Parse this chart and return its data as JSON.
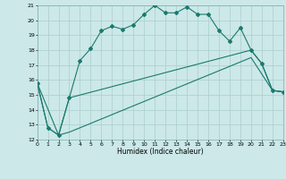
{
  "title": "",
  "xlabel": "Humidex (Indice chaleur)",
  "xlim": [
    0,
    23
  ],
  "ylim": [
    12,
    21
  ],
  "yticks": [
    12,
    13,
    14,
    15,
    16,
    17,
    18,
    19,
    20,
    21
  ],
  "xticks": [
    0,
    1,
    2,
    3,
    4,
    5,
    6,
    7,
    8,
    9,
    10,
    11,
    12,
    13,
    14,
    15,
    16,
    17,
    18,
    19,
    20,
    21,
    22,
    23
  ],
  "bg_color": "#cce8e8",
  "grid_color": "#aacece",
  "line_color": "#1a7a6e",
  "line1_x": [
    0,
    1,
    2,
    3,
    4,
    5,
    6,
    7,
    8,
    9,
    10,
    11,
    12,
    13,
    14,
    15,
    16,
    17,
    18,
    19,
    20,
    21,
    22,
    23
  ],
  "line1_y": [
    15.8,
    12.8,
    12.3,
    14.8,
    17.3,
    18.1,
    19.3,
    19.6,
    19.4,
    19.7,
    20.4,
    21.0,
    20.5,
    20.5,
    20.9,
    20.4,
    20.4,
    19.3,
    18.6,
    19.5,
    18.0,
    17.1,
    15.3,
    15.2
  ],
  "line2_x": [
    0,
    2,
    3,
    20,
    21,
    22,
    23
  ],
  "line2_y": [
    15.8,
    12.3,
    14.8,
    18.0,
    17.1,
    15.3,
    15.2
  ],
  "line3_x": [
    0,
    1,
    2,
    3,
    20,
    22,
    23
  ],
  "line3_y": [
    15.8,
    12.8,
    12.3,
    12.5,
    17.5,
    15.3,
    15.2
  ]
}
